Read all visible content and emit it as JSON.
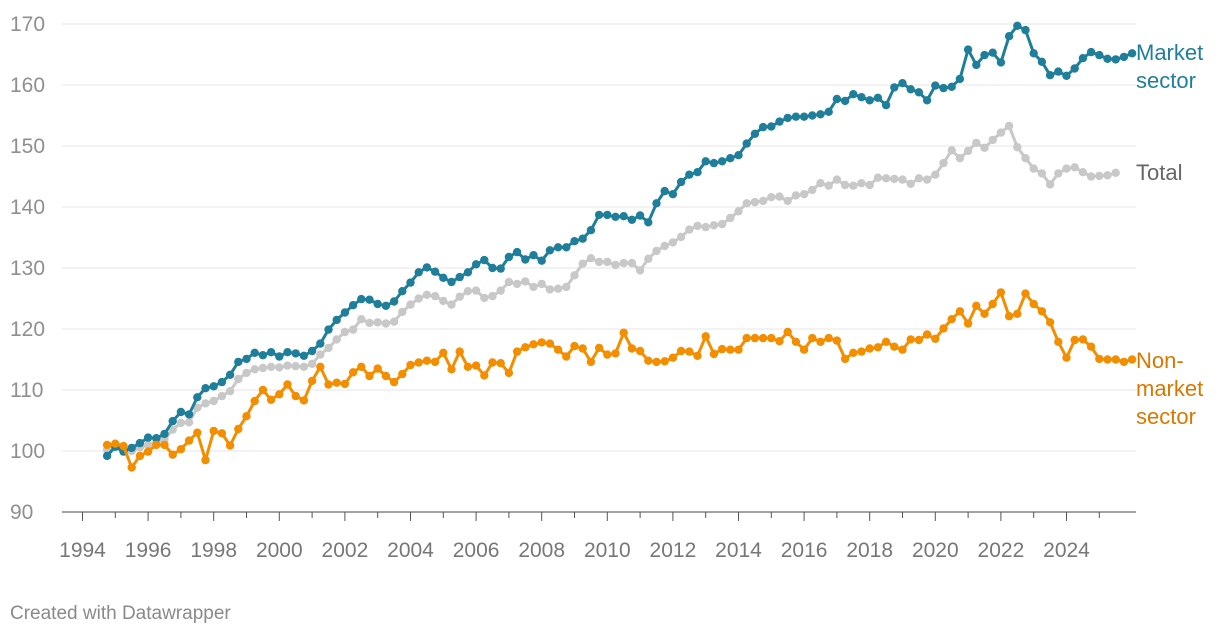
{
  "footer": {
    "credit": "Created with Datawrapper"
  },
  "colors": {
    "market": "#1f7f9a",
    "total": "#c8c8c8",
    "nonmarket": "#f28e00",
    "grid": "#e4e4e4",
    "tick_text": "#8f8f8f",
    "total_label": "#666666",
    "nonmarket_label": "#d97800"
  },
  "chart_data": {
    "type": "line",
    "title": "",
    "xlabel": "",
    "ylabel": "",
    "ylim": [
      90,
      170
    ],
    "xlim": [
      1994,
      2026
    ],
    "y_ticks": [
      90,
      100,
      110,
      120,
      130,
      140,
      150,
      160,
      170
    ],
    "x_ticks": [
      1994,
      1996,
      1998,
      2000,
      2002,
      2004,
      2006,
      2008,
      2010,
      2012,
      2014,
      2016,
      2018,
      2020,
      2022,
      2024
    ],
    "grid": true,
    "legend": "direct labels at right end of lines",
    "x_start": 1994.75,
    "x_step": 0.25,
    "series": [
      {
        "key": "market",
        "name": "Market sector",
        "label_lines": [
          "Market",
          "sector"
        ],
        "color": "#1f7f9a",
        "values": [
          99.2,
          100.7,
          99.9,
          100.5,
          101.3,
          102.2,
          102.1,
          102.8,
          104.9,
          106.4,
          106.0,
          108.8,
          110.3,
          110.6,
          111.3,
          112.5,
          114.6,
          115.1,
          116.1,
          115.7,
          116.2,
          115.5,
          116.2,
          116.0,
          115.6,
          116.4,
          117.6,
          119.9,
          121.5,
          122.7,
          123.9,
          124.9,
          124.8,
          124.1,
          123.8,
          124.5,
          126.2,
          127.6,
          129.3,
          130.1,
          129.4,
          128.4,
          127.7,
          128.5,
          129.3,
          130.6,
          131.3,
          130.0,
          129.9,
          131.8,
          132.6,
          131.4,
          132.1,
          131.2,
          132.9,
          133.4,
          133.4,
          134.4,
          134.8,
          136.2,
          138.7,
          138.7,
          138.4,
          138.5,
          137.9,
          138.6,
          137.5,
          140.6,
          142.6,
          142.1,
          144.1,
          145.3,
          145.7,
          147.5,
          147.2,
          147.5,
          148.0,
          148.5,
          150.4,
          152.0,
          153.1,
          153.2,
          154.0,
          154.6,
          154.8,
          154.8,
          155.0,
          155.2,
          155.6,
          157.7,
          157.4,
          158.5,
          158.0,
          157.5,
          157.9,
          156.7,
          159.6,
          160.3,
          159.3,
          158.8,
          157.5,
          159.9,
          159.5,
          159.7,
          161.0,
          165.8,
          163.3,
          164.9,
          165.3,
          163.7,
          168.0,
          169.7,
          169.0,
          165.2,
          163.8,
          161.6,
          162.2,
          161.5,
          162.7,
          164.4,
          165.4,
          164.9,
          164.3,
          164.2,
          164.6,
          165.2
        ]
      },
      {
        "key": "total",
        "name": "Total",
        "label_lines": [
          "Total"
        ],
        "color": "#c8c8c8",
        "values": [
          100.2,
          100.6,
          100.0,
          100.0,
          100.6,
          101.0,
          101.4,
          101.9,
          103.5,
          104.6,
          104.7,
          107.1,
          107.8,
          108.2,
          109.0,
          109.8,
          111.8,
          112.8,
          113.4,
          113.6,
          113.8,
          113.7,
          114.0,
          113.9,
          113.8,
          114.3,
          115.8,
          116.9,
          118.3,
          119.5,
          119.9,
          121.6,
          121.0,
          121.1,
          120.9,
          121.2,
          122.8,
          124.0,
          125.0,
          125.6,
          125.4,
          124.6,
          124.0,
          125.3,
          126.2,
          126.3,
          125.1,
          125.4,
          126.3,
          127.7,
          127.4,
          127.8,
          126.9,
          127.4,
          126.5,
          126.6,
          126.9,
          128.8,
          130.7,
          131.6,
          131.0,
          131.0,
          130.5,
          130.8,
          130.8,
          129.6,
          131.5,
          132.8,
          133.6,
          134.2,
          135.1,
          136.3,
          136.9,
          136.7,
          137.0,
          137.2,
          138.2,
          139.3,
          140.6,
          140.8,
          141.0,
          141.6,
          141.7,
          141.0,
          141.9,
          142.1,
          142.8,
          143.9,
          143.5,
          144.5,
          143.6,
          143.5,
          143.9,
          143.6,
          144.8,
          144.7,
          144.6,
          144.5,
          143.8,
          144.7,
          144.5,
          145.3,
          147.2,
          149.3,
          148.0,
          149.2,
          150.5,
          149.7,
          151.0,
          152.2,
          153.3,
          149.8,
          148.0,
          146.3,
          145.5,
          143.7,
          145.5,
          146.3,
          146.5,
          145.7,
          145.0,
          145.1,
          145.2,
          145.6
        ]
      },
      {
        "key": "nonmarket",
        "name": "Non-market sector",
        "label_lines": [
          "Non-",
          "market",
          "sector"
        ],
        "color": "#f28e00",
        "values": [
          101.0,
          101.2,
          100.8,
          97.3,
          99.2,
          99.9,
          101.0,
          101.0,
          99.4,
          100.3,
          101.7,
          103.0,
          98.5,
          103.3,
          102.9,
          100.9,
          103.6,
          105.7,
          108.2,
          110.0,
          108.4,
          109.3,
          110.9,
          109.0,
          108.3,
          111.5,
          113.8,
          110.9,
          111.2,
          111.0,
          112.9,
          113.8,
          112.3,
          113.5,
          112.3,
          111.3,
          112.6,
          114.1,
          114.5,
          114.8,
          114.6,
          116.1,
          113.4,
          116.3,
          113.8,
          114.0,
          112.4,
          114.5,
          114.4,
          112.8,
          116.3,
          117.0,
          117.5,
          117.8,
          117.6,
          116.6,
          115.5,
          117.2,
          116.8,
          114.6,
          116.9,
          115.8,
          116.0,
          119.4,
          116.8,
          116.4,
          114.8,
          114.6,
          114.7,
          115.3,
          116.4,
          116.3,
          115.6,
          118.8,
          115.9,
          116.7,
          116.6,
          116.6,
          118.5,
          118.5,
          118.5,
          118.5,
          118.0,
          119.5,
          117.9,
          116.6,
          118.5,
          117.9,
          118.5,
          118.1,
          115.1,
          116.1,
          116.3,
          116.8,
          117.0,
          117.9,
          117.1,
          116.6,
          118.3,
          118.2,
          119.1,
          118.4,
          120.1,
          121.6,
          122.9,
          120.9,
          123.8,
          122.5,
          124.1,
          126.0,
          122.1,
          122.5,
          125.8,
          124.1,
          122.9,
          121.1,
          117.9,
          115.3,
          118.2,
          118.3,
          117.1,
          115.1,
          115.0,
          115.0,
          114.6,
          115.0
        ]
      }
    ]
  }
}
